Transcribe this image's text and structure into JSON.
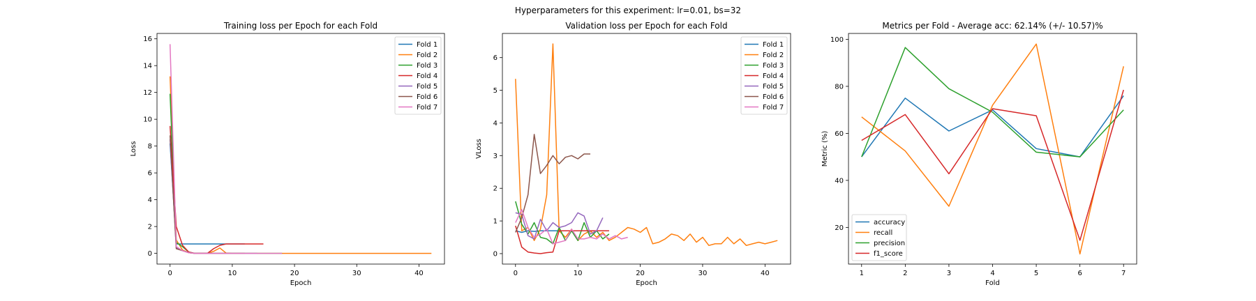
{
  "suptitle": "Hyperparameters for this experiment: lr=0.01, bs=32",
  "chart_data": [
    {
      "type": "line",
      "title": "Training loss per Epoch for each Fold",
      "xlabel": "Epoch",
      "ylabel": "Loss",
      "xlim": [
        -2.1,
        44.1
      ],
      "ylim": [
        -0.8,
        16.4
      ],
      "xticks": [
        0,
        10,
        20,
        30,
        40
      ],
      "yticks": [
        0,
        2,
        4,
        6,
        8,
        10,
        12,
        14,
        16
      ],
      "legend_position": "upper right",
      "series": [
        {
          "name": "Fold 1",
          "color": "#1f77b4",
          "x": [
            0,
            1,
            2,
            3,
            4,
            5,
            6,
            7,
            8,
            9,
            10,
            11,
            12
          ],
          "y": [
            8.2,
            0.7,
            0.7,
            0.7,
            0.7,
            0.7,
            0.7,
            0.7,
            0.7,
            0.7,
            0.7,
            0.7,
            0.7
          ]
        },
        {
          "name": "Fold 2",
          "color": "#ff7f0e",
          "x": [
            0,
            1,
            2,
            3,
            4,
            5,
            6,
            7,
            8,
            9,
            10,
            12,
            15,
            20,
            25,
            30,
            35,
            40,
            42
          ],
          "y": [
            13.2,
            1.0,
            0.25,
            0.05,
            0.0,
            0.0,
            0.0,
            0.15,
            0.4,
            0.02,
            0.0,
            0.0,
            0.0,
            0.0,
            0.0,
            0.0,
            0.0,
            0.0,
            0.0
          ]
        },
        {
          "name": "Fold 3",
          "color": "#2ca02c",
          "x": [
            0,
            1,
            2,
            3,
            4,
            5,
            6,
            7,
            8,
            9,
            10,
            12,
            15,
            18
          ],
          "y": [
            11.9,
            0.8,
            0.5,
            0.1,
            0.0,
            0.0,
            0.0,
            0.0,
            0.0,
            0.0,
            0.0,
            0.0,
            0.0,
            0.0
          ]
        },
        {
          "name": "Fold 4",
          "color": "#d62728",
          "x": [
            0,
            1,
            2,
            3,
            4,
            5,
            6,
            7,
            8,
            9,
            10,
            11,
            12,
            13,
            14,
            15
          ],
          "y": [
            9.5,
            2.0,
            0.6,
            0.1,
            0.0,
            0.0,
            0.0,
            0.35,
            0.6,
            0.7,
            0.7,
            0.7,
            0.7,
            0.7,
            0.7,
            0.7
          ]
        },
        {
          "name": "Fold 5",
          "color": "#9467bd",
          "x": [
            0,
            1,
            2,
            3,
            4,
            5,
            6,
            8,
            10,
            12,
            14
          ],
          "y": [
            8.5,
            0.4,
            0.2,
            0.05,
            0.0,
            0.0,
            0.0,
            0.0,
            0.0,
            0.0,
            0.0
          ]
        },
        {
          "name": "Fold 6",
          "color": "#8c564b",
          "x": [
            0,
            1,
            2,
            3,
            4,
            5,
            6,
            8,
            10,
            12
          ],
          "y": [
            8.8,
            0.35,
            0.2,
            0.05,
            0.0,
            0.0,
            0.0,
            0.0,
            0.0,
            0.0
          ]
        },
        {
          "name": "Fold 7",
          "color": "#e377c2",
          "x": [
            0,
            1,
            2,
            3,
            4,
            5,
            6,
            8,
            10,
            12,
            14,
            16,
            18
          ],
          "y": [
            15.6,
            0.5,
            0.2,
            0.05,
            0.0,
            0.0,
            0.0,
            0.0,
            0.0,
            0.0,
            0.0,
            0.0,
            0.0
          ]
        }
      ]
    },
    {
      "type": "line",
      "title": "Validation loss per Epoch for each Fold",
      "xlabel": "Epoch",
      "ylabel": "VLoss",
      "xlim": [
        -2.1,
        44.1
      ],
      "ylim": [
        -0.32,
        6.74
      ],
      "xticks": [
        0,
        10,
        20,
        30,
        40
      ],
      "yticks": [
        0,
        1,
        2,
        3,
        4,
        5,
        6
      ],
      "legend_position": "upper right",
      "series": [
        {
          "name": "Fold 1",
          "color": "#1f77b4",
          "x": [
            0,
            1,
            2,
            3,
            4,
            5,
            6,
            7,
            8,
            9,
            10,
            11,
            12,
            13,
            14,
            15
          ],
          "y": [
            0.7,
            0.65,
            0.7,
            0.68,
            0.7,
            0.7,
            0.7,
            0.7,
            0.7,
            0.7,
            0.7,
            0.7,
            0.7,
            0.7,
            0.7,
            0.7
          ]
        },
        {
          "name": "Fold 2",
          "color": "#ff7f0e",
          "x": [
            0,
            1,
            2,
            3,
            4,
            5,
            6,
            7,
            8,
            9,
            10,
            11,
            12,
            13,
            14,
            15,
            16,
            17,
            18,
            19,
            20,
            21,
            22,
            23,
            24,
            25,
            26,
            27,
            28,
            29,
            30,
            31,
            32,
            33,
            34,
            35,
            36,
            37,
            38,
            39,
            40,
            41,
            42
          ],
          "y": [
            5.35,
            0.7,
            0.8,
            0.4,
            0.75,
            1.8,
            6.42,
            0.7,
            0.5,
            0.75,
            0.4,
            0.6,
            0.7,
            0.5,
            0.65,
            0.4,
            0.5,
            0.65,
            0.8,
            0.75,
            0.65,
            0.8,
            0.3,
            0.35,
            0.45,
            0.6,
            0.55,
            0.4,
            0.6,
            0.35,
            0.5,
            0.25,
            0.3,
            0.3,
            0.5,
            0.3,
            0.45,
            0.25,
            0.3,
            0.35,
            0.3,
            0.35,
            0.4
          ]
        },
        {
          "name": "Fold 3",
          "color": "#2ca02c",
          "x": [
            0,
            1,
            2,
            3,
            4,
            5,
            6,
            7,
            8,
            9,
            10,
            11,
            12,
            13,
            14,
            15
          ],
          "y": [
            1.6,
            0.9,
            0.6,
            0.95,
            0.5,
            0.45,
            0.3,
            0.8,
            0.4,
            0.7,
            0.4,
            0.95,
            0.5,
            0.7,
            0.45,
            0.6
          ]
        },
        {
          "name": "Fold 4",
          "color": "#d62728",
          "x": [
            0,
            1,
            2,
            3,
            4,
            5,
            6,
            7,
            8,
            9,
            10,
            11,
            12,
            13,
            14,
            15
          ],
          "y": [
            0.85,
            0.2,
            0.05,
            0.02,
            0.0,
            0.03,
            0.05,
            0.7,
            0.7,
            0.7,
            0.7,
            0.7,
            0.7,
            0.7,
            0.7,
            0.7
          ]
        },
        {
          "name": "Fold 5",
          "color": "#9467bd",
          "x": [
            0,
            1,
            2,
            3,
            4,
            5,
            6,
            7,
            8,
            9,
            10,
            11,
            12,
            13,
            14
          ],
          "y": [
            1.25,
            1.2,
            0.55,
            0.45,
            1.05,
            0.7,
            0.95,
            0.8,
            0.85,
            0.95,
            1.25,
            1.15,
            0.6,
            0.7,
            1.1
          ]
        },
        {
          "name": "Fold 6",
          "color": "#8c564b",
          "x": [
            0,
            1,
            2,
            3,
            4,
            5,
            6,
            7,
            8,
            9,
            10,
            11,
            12
          ],
          "y": [
            0.65,
            1.1,
            1.8,
            3.65,
            2.45,
            2.7,
            3.0,
            2.75,
            2.95,
            3.0,
            2.9,
            3.05,
            3.05
          ]
        },
        {
          "name": "Fold 7",
          "color": "#e377c2",
          "x": [
            0,
            1,
            2,
            3,
            4,
            5,
            6,
            7,
            8,
            9,
            10,
            11,
            12,
            13,
            14,
            15,
            16,
            17,
            18
          ],
          "y": [
            0.95,
            1.35,
            0.8,
            0.5,
            0.6,
            0.75,
            0.3,
            0.35,
            0.4,
            0.75,
            0.45,
            0.45,
            0.5,
            0.45,
            0.6,
            0.45,
            0.55,
            0.45,
            0.5
          ]
        }
      ]
    },
    {
      "type": "line",
      "title": "Metrics per Fold - Average acc: 62.14% (+/- 10.57)%",
      "xlabel": "Fold",
      "ylabel": "Metric (%)",
      "xlim": [
        0.7,
        7.3
      ],
      "ylim": [
        4.4,
        102.5
      ],
      "xticks": [
        1,
        2,
        3,
        4,
        5,
        6,
        7
      ],
      "yticks": [
        20,
        40,
        60,
        80,
        100
      ],
      "legend_position": "lower left",
      "series": [
        {
          "name": "accuracy",
          "color": "#1f77b4",
          "x": [
            1,
            2,
            3,
            4,
            5,
            6,
            7
          ],
          "y": [
            50,
            75,
            61,
            70,
            53.5,
            50,
            76
          ]
        },
        {
          "name": "recall",
          "color": "#ff7f0e",
          "x": [
            1,
            2,
            3,
            4,
            5,
            6,
            7
          ],
          "y": [
            67,
            52.5,
            29,
            72,
            98,
            8.7,
            88.5
          ]
        },
        {
          "name": "precision",
          "color": "#2ca02c",
          "x": [
            1,
            2,
            3,
            4,
            5,
            6,
            7
          ],
          "y": [
            50,
            96.5,
            79,
            69,
            52,
            50,
            70
          ]
        },
        {
          "name": "f1_score",
          "color": "#d62728",
          "x": [
            1,
            2,
            3,
            4,
            5,
            6,
            7
          ],
          "y": [
            57,
            68,
            42.8,
            70.5,
            67.5,
            14.5,
            78.5
          ]
        }
      ]
    }
  ]
}
